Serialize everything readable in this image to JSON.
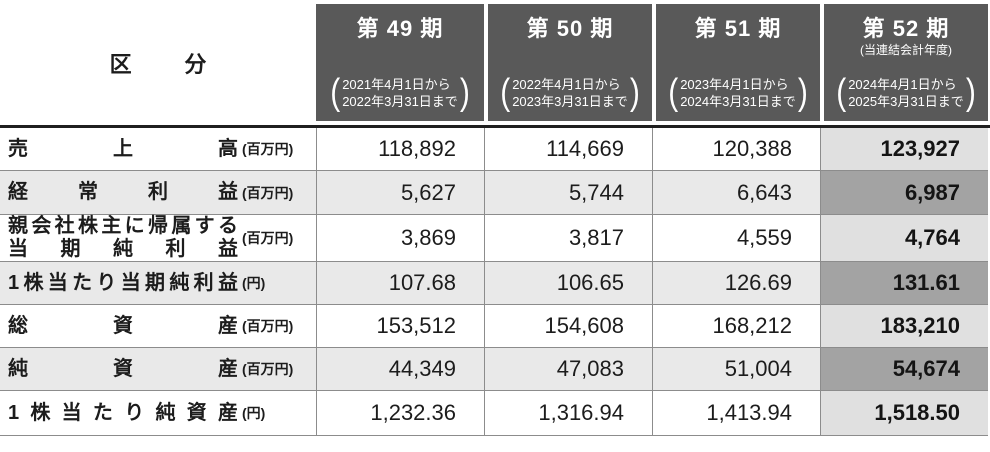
{
  "header": {
    "category_label": "区分",
    "periods": [
      {
        "title": "第 49 期",
        "subtitle": "",
        "date_from": "2021年4月1日から",
        "date_to": "2022年3月31日まで"
      },
      {
        "title": "第 50 期",
        "subtitle": "",
        "date_from": "2022年4月1日から",
        "date_to": "2023年3月31日まで"
      },
      {
        "title": "第 51 期",
        "subtitle": "",
        "date_from": "2023年4月1日から",
        "date_to": "2024年3月31日まで"
      },
      {
        "title": "第 52 期",
        "subtitle": "(当連結会計年度)",
        "date_from": "2024年4月1日から",
        "date_to": "2025年3月31日まで"
      }
    ]
  },
  "table": {
    "rows": [
      {
        "label": "売上高",
        "label2": "",
        "unit": "(百万円)",
        "values": [
          "118,892",
          "114,669",
          "120,388",
          "123,927"
        ]
      },
      {
        "label": "経常利益",
        "label2": "",
        "unit": "(百万円)",
        "values": [
          "5,627",
          "5,744",
          "6,643",
          "6,987"
        ]
      },
      {
        "label": "親会社株主に帰属する",
        "label2": "当期純利益",
        "unit": "(百万円)",
        "values": [
          "3,869",
          "3,817",
          "4,559",
          "4,764"
        ]
      },
      {
        "label": "1株当たり当期純利益",
        "label2": "",
        "unit": "(円)",
        "values": [
          "107.68",
          "106.65",
          "126.69",
          "131.61"
        ]
      },
      {
        "label": "総資産",
        "label2": "",
        "unit": "(百万円)",
        "values": [
          "153,512",
          "154,608",
          "168,212",
          "183,210"
        ]
      },
      {
        "label": "純資産",
        "label2": "",
        "unit": "(百万円)",
        "values": [
          "44,349",
          "47,083",
          "51,004",
          "54,674"
        ]
      },
      {
        "label": "1株当たり純資産",
        "label2": "",
        "unit": "(円)",
        "values": [
          "1,232.36",
          "1,316.94",
          "1,413.94",
          "1,518.50"
        ]
      }
    ]
  },
  "colors": {
    "header_bg": "#595959",
    "header_text": "#ffffff",
    "shaded_row_bg": "#e9e9e9",
    "current_period_col_light": "#e0e0e0",
    "current_period_col_dark": "#a3a3a3",
    "body_top_border": "#1f1f1f",
    "grid_border": "#8c8c8c"
  }
}
